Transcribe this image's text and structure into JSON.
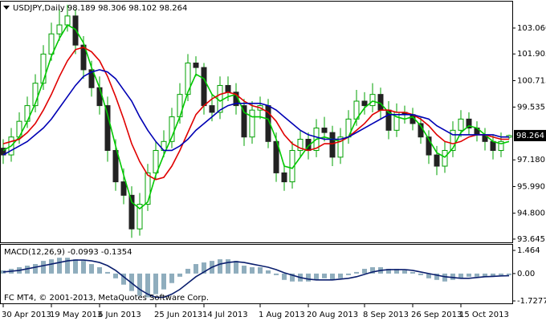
{
  "chart_data": [
    {
      "type": "candlestick",
      "title": "USDJPY,Daily  98.189 98.306 98.102 98.264",
      "last_price": 98.264,
      "up_color": "#00a000",
      "down_color": "#222222",
      "categories": [
        "30 Apr 2013",
        null,
        null,
        null,
        null,
        null,
        "19 May 2013",
        null,
        null,
        null,
        null,
        null,
        "6 Jun 2013",
        null,
        null,
        null,
        null,
        null,
        null,
        "25 Jun 2013",
        null,
        null,
        null,
        null,
        null,
        "14 Jul 2013",
        null,
        null,
        null,
        null,
        null,
        null,
        "1 Aug 2013",
        null,
        null,
        null,
        null,
        null,
        "20 Aug 2013",
        null,
        null,
        null,
        null,
        null,
        null,
        "8 Sep 2013",
        null,
        null,
        null,
        null,
        null,
        "26 Sep 2013",
        null,
        null,
        null,
        null,
        null,
        "15 Oct 2013",
        null,
        null,
        null,
        null,
        null,
        null
      ],
      "open": [
        97.7,
        97.4,
        98.2,
        98.9,
        99.6,
        100.6,
        101.9,
        102.8,
        103.2,
        103.6,
        102.3,
        101.2,
        100.4,
        99.6,
        97.6,
        96.2,
        95.6,
        94.1,
        95.2,
        96.6,
        97.6,
        98.0,
        99.1,
        100.1,
        101.5,
        101.3,
        99.6,
        99.3,
        100.5,
        100.2,
        99.6,
        98.2,
        99.4,
        99.6,
        98.0,
        96.6,
        96.2,
        97.6,
        98.1,
        97.6,
        98.6,
        98.4,
        97.3,
        98.2,
        99.0,
        99.8,
        99.6,
        100.1,
        99.4,
        98.5,
        99.3,
        99.2,
        98.8,
        98.2,
        97.4,
        96.9,
        97.6,
        98.5,
        99.0,
        98.6,
        98.3,
        98.0,
        97.6,
        98.189
      ],
      "high": [
        98.1,
        98.6,
        99.3,
        100.0,
        101.0,
        102.3,
        103.3,
        103.9,
        104.1,
        103.9,
        102.7,
        101.6,
        100.9,
        100.0,
        98.1,
        96.8,
        96.0,
        95.7,
        97.0,
        98.0,
        98.5,
        99.5,
        100.6,
        101.9,
        101.8,
        101.5,
        100.1,
        100.9,
        100.9,
        100.6,
        99.9,
        99.8,
        100.0,
        99.9,
        98.4,
        97.0,
        98.0,
        98.5,
        98.4,
        99.0,
        99.1,
        98.7,
        98.6,
        99.4,
        100.3,
        100.2,
        100.6,
        100.4,
        99.8,
        99.7,
        99.6,
        99.5,
        99.1,
        98.5,
        97.8,
        98.0,
        98.9,
        99.4,
        99.3,
        98.9,
        98.6,
        98.3,
        98.4,
        98.306
      ],
      "low": [
        97.0,
        97.1,
        97.9,
        98.6,
        99.3,
        100.3,
        101.6,
        102.5,
        102.9,
        101.9,
        100.8,
        100.0,
        99.2,
        97.1,
        95.8,
        95.2,
        93.7,
        93.8,
        94.9,
        96.3,
        97.3,
        97.7,
        98.8,
        99.8,
        100.9,
        99.2,
        98.9,
        99.0,
        99.8,
        99.2,
        97.8,
        97.9,
        99.0,
        97.7,
        96.2,
        95.8,
        95.9,
        97.3,
        97.2,
        97.3,
        98.0,
        96.9,
        97.0,
        97.9,
        98.7,
        99.2,
        99.3,
        99.0,
        98.1,
        98.2,
        98.8,
        98.5,
        97.9,
        97.0,
        96.5,
        96.6,
        97.3,
        98.2,
        98.3,
        98.0,
        97.6,
        97.2,
        97.3,
        98.102
      ],
      "close": [
        97.4,
        98.2,
        98.9,
        99.6,
        100.6,
        101.9,
        102.8,
        103.2,
        103.6,
        102.3,
        101.2,
        100.4,
        99.6,
        97.6,
        96.2,
        95.6,
        94.1,
        95.2,
        96.6,
        97.6,
        98.0,
        99.1,
        100.1,
        101.5,
        101.3,
        99.6,
        99.3,
        100.5,
        100.2,
        99.6,
        98.2,
        99.4,
        99.6,
        98.0,
        96.6,
        96.2,
        97.6,
        98.1,
        97.6,
        98.6,
        98.4,
        97.3,
        98.2,
        99.0,
        99.8,
        99.6,
        100.1,
        99.4,
        98.5,
        99.3,
        99.2,
        98.8,
        98.2,
        97.4,
        96.9,
        97.6,
        98.5,
        99.0,
        98.6,
        98.3,
        98.0,
        97.6,
        98.0,
        98.264
      ],
      "series": [
        {
          "color": "#00c800",
          "values": [
            97.6,
            97.8,
            98.2,
            98.9,
            99.7,
            100.7,
            101.8,
            102.6,
            103.2,
            103.0,
            102.4,
            101.3,
            100.4,
            99.2,
            97.8,
            96.5,
            95.3,
            95.0,
            95.3,
            96.5,
            97.4,
            98.2,
            99.1,
            100.2,
            101.0,
            100.8,
            100.1,
            99.8,
            100.0,
            100.1,
            99.3,
            99.1,
            99.1,
            99.0,
            98.1,
            96.9,
            96.8,
            97.3,
            97.8,
            98.1,
            98.2,
            98.1,
            98.0,
            98.2,
            99.0,
            99.5,
            99.8,
            99.7,
            99.3,
            99.1,
            99.0,
            99.1,
            98.7,
            98.1,
            97.5,
            97.3,
            97.7,
            98.4,
            98.7,
            98.6,
            98.3,
            98.0,
            97.9,
            98.0
          ]
        },
        {
          "color": "#e00000",
          "values": [
            97.9,
            98.0,
            98.1,
            98.4,
            98.8,
            99.4,
            100.1,
            100.9,
            101.6,
            102.1,
            102.2,
            102.0,
            101.6,
            100.9,
            100.0,
            99.0,
            97.9,
            97.1,
            96.5,
            96.3,
            96.4,
            96.9,
            97.6,
            98.4,
            99.2,
            99.6,
            99.9,
            100.1,
            100.2,
            100.1,
            99.8,
            99.6,
            99.5,
            99.3,
            98.9,
            98.3,
            97.9,
            97.7,
            97.6,
            97.7,
            97.9,
            97.9,
            98.0,
            98.2,
            98.5,
            98.8,
            99.2,
            99.4,
            99.4,
            99.3,
            99.3,
            99.2,
            99.0,
            98.7,
            98.3,
            98.0,
            97.9,
            98.0,
            98.2,
            98.3,
            98.3,
            98.2,
            98.1,
            98.1
          ]
        },
        {
          "color": "#0000b4",
          "values": [
            97.4,
            97.6,
            97.8,
            98.0,
            98.3,
            98.6,
            99.0,
            99.5,
            100.0,
            100.5,
            100.9,
            101.1,
            101.2,
            101.1,
            100.8,
            100.3,
            99.8,
            99.1,
            98.5,
            98.0,
            97.6,
            97.6,
            97.8,
            98.1,
            98.5,
            98.8,
            99.1,
            99.4,
            99.6,
            99.7,
            99.7,
            99.7,
            99.7,
            99.6,
            99.4,
            99.1,
            98.8,
            98.5,
            98.3,
            98.2,
            98.1,
            98.1,
            98.1,
            98.2,
            98.4,
            98.6,
            98.8,
            99.0,
            99.2,
            99.2,
            99.2,
            99.2,
            99.1,
            99.0,
            98.7,
            98.5,
            98.3,
            98.3,
            98.3,
            98.3,
            98.3,
            98.3,
            98.2,
            98.2
          ]
        }
      ],
      "ylim": [
        93.5,
        104.24
      ],
      "yticks": [
        {
          "value": 103.06,
          "label": "103.060"
        },
        101.905,
        100.715,
        99.535,
        {
          "value": 97.18,
          "label": "97.180"
        },
        {
          "value": 95.99,
          "label": "95.990"
        },
        {
          "value": 94.8,
          "label": "94.800"
        },
        93.645
      ]
    },
    {
      "type": "macd",
      "title": "MACD(12,26,9) -0.0993 -0.1354",
      "footer": "FC MT4, © 2001-2013, MetaQuotes Software Corp.",
      "series": [
        {
          "color": "#8fadbd",
          "values": [
            0.2,
            0.3,
            0.4,
            0.5,
            0.6,
            0.8,
            0.9,
            1.0,
            1.0,
            0.9,
            0.8,
            0.6,
            0.4,
            0.1,
            -0.3,
            -0.7,
            -1.1,
            -1.4,
            -1.5,
            -1.3,
            -1.0,
            -0.6,
            -0.2,
            0.3,
            0.6,
            0.7,
            0.8,
            0.9,
            0.9,
            0.8,
            0.5,
            0.4,
            0.4,
            0.2,
            -0.1,
            -0.4,
            -0.5,
            -0.5,
            -0.5,
            -0.4,
            -0.3,
            -0.4,
            -0.3,
            -0.1,
            0.1,
            0.3,
            0.4,
            0.4,
            0.3,
            0.3,
            0.2,
            0.1,
            -0.1,
            -0.3,
            -0.4,
            -0.5,
            -0.4,
            -0.3,
            -0.2,
            -0.2,
            -0.2,
            -0.2,
            -0.1,
            -0.0993
          ]
        },
        {
          "color": "#0b1f6e",
          "values": [
            0.1,
            0.15,
            0.2,
            0.3,
            0.4,
            0.5,
            0.6,
            0.7,
            0.8,
            0.85,
            0.85,
            0.8,
            0.7,
            0.5,
            0.2,
            -0.2,
            -0.6,
            -1.0,
            -1.3,
            -1.5,
            -1.5,
            -1.3,
            -1.0,
            -0.6,
            -0.2,
            0.1,
            0.4,
            0.6,
            0.7,
            0.75,
            0.7,
            0.6,
            0.5,
            0.4,
            0.25,
            0.05,
            -0.1,
            -0.25,
            -0.35,
            -0.4,
            -0.4,
            -0.4,
            -0.35,
            -0.3,
            -0.2,
            -0.05,
            0.1,
            0.2,
            0.25,
            0.25,
            0.25,
            0.2,
            0.1,
            0.0,
            -0.1,
            -0.2,
            -0.25,
            -0.3,
            -0.3,
            -0.25,
            -0.2,
            -0.18,
            -0.15,
            -0.1354
          ]
        }
      ],
      "ylim": [
        -1.88,
        1.818
      ],
      "yticks": [
        1.464,
        {
          "value": 0,
          "label": "0.00"
        },
        -1.7277
      ]
    }
  ]
}
